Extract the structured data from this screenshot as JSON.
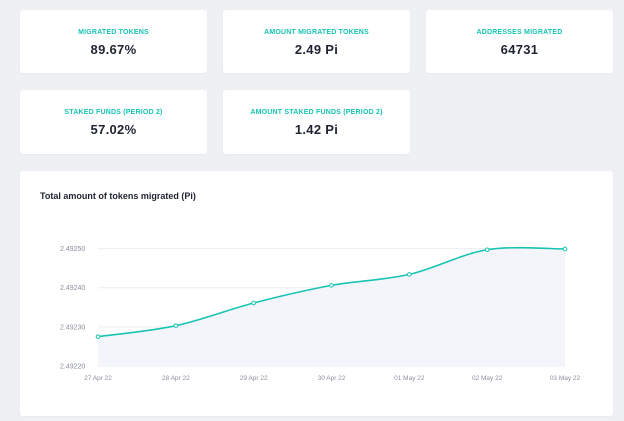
{
  "accent_color": "#17c4b2",
  "stats": [
    {
      "label": "MIGRATED TOKENS",
      "value": "89.67%"
    },
    {
      "label": "AMOUNT MIGRATED TOKENS",
      "value": "2.49 Pi"
    },
    {
      "label": "ADDRESSES MIGRATED",
      "value": "64731"
    },
    {
      "label": "STAKED FUNDS (PERIOD 2)",
      "value": "57.02%"
    },
    {
      "label": "AMOUNT STAKED FUNDS (PERIOD 2)",
      "value": "1.42 Pi"
    }
  ],
  "chart_data": {
    "type": "area",
    "title": "Total amount of tokens migrated (Pi)",
    "categories": [
      "27 Apr 22",
      "28 Apr 22",
      "29 Apr 22",
      "30 Apr 22",
      "01 May 22",
      "02 May 22",
      "03 May 22"
    ],
    "series": [
      {
        "values": [
          2.492275,
          2.492303,
          2.492361,
          2.492406,
          2.492434,
          2.492497,
          2.492499
        ]
      }
    ],
    "ylim": [
      2.4922,
      2.49255
    ],
    "yticks": [
      "2.49220",
      "2.49230",
      "2.49240",
      "2.49250"
    ],
    "ytick_values": [
      2.4922,
      2.4923,
      2.4924,
      2.4925
    ],
    "grid": true,
    "legend": "none"
  }
}
